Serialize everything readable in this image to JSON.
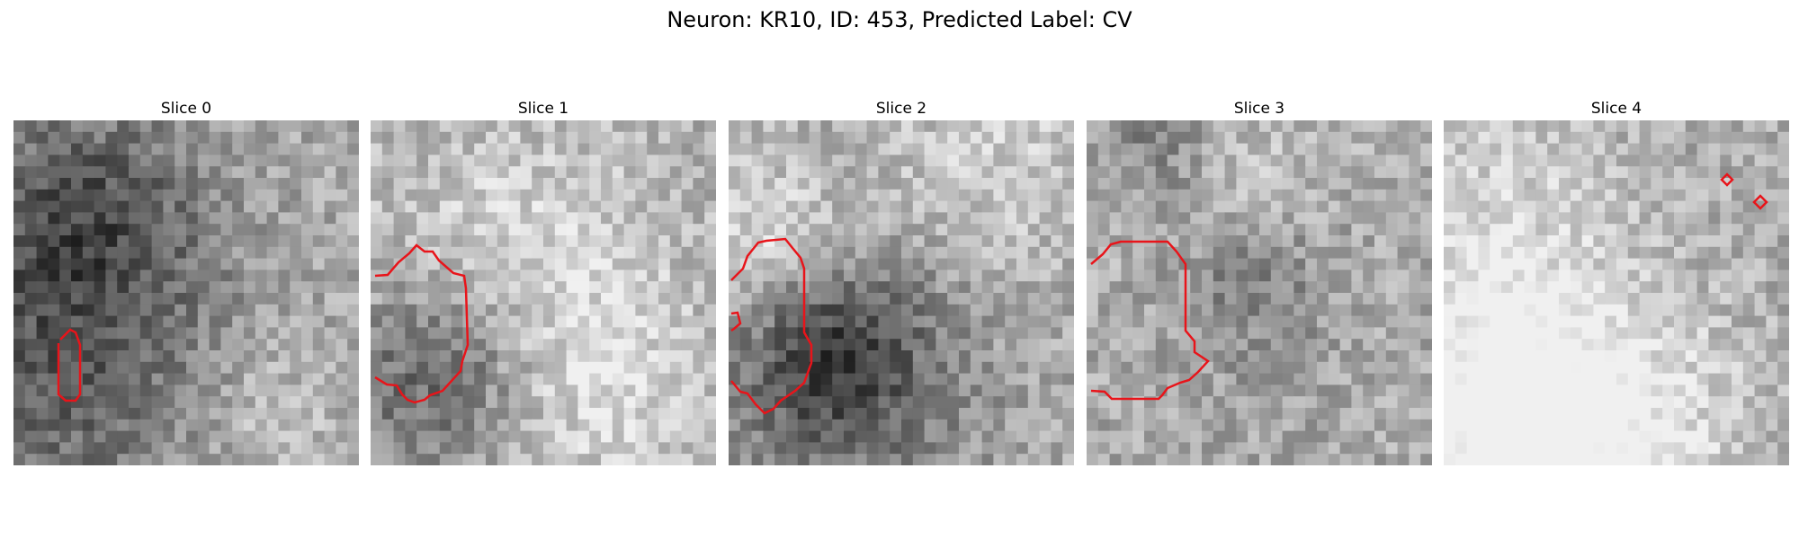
{
  "figure": {
    "title": "Neuron: KR10, ID: 453, Predicted Label: CV",
    "outline_color": "#e8141a",
    "panels": [
      {
        "title": "Slice 0"
      },
      {
        "title": "Slice 1"
      },
      {
        "title": "Slice 2"
      },
      {
        "title": "Slice 3"
      },
      {
        "title": "Slice 4"
      }
    ]
  }
}
